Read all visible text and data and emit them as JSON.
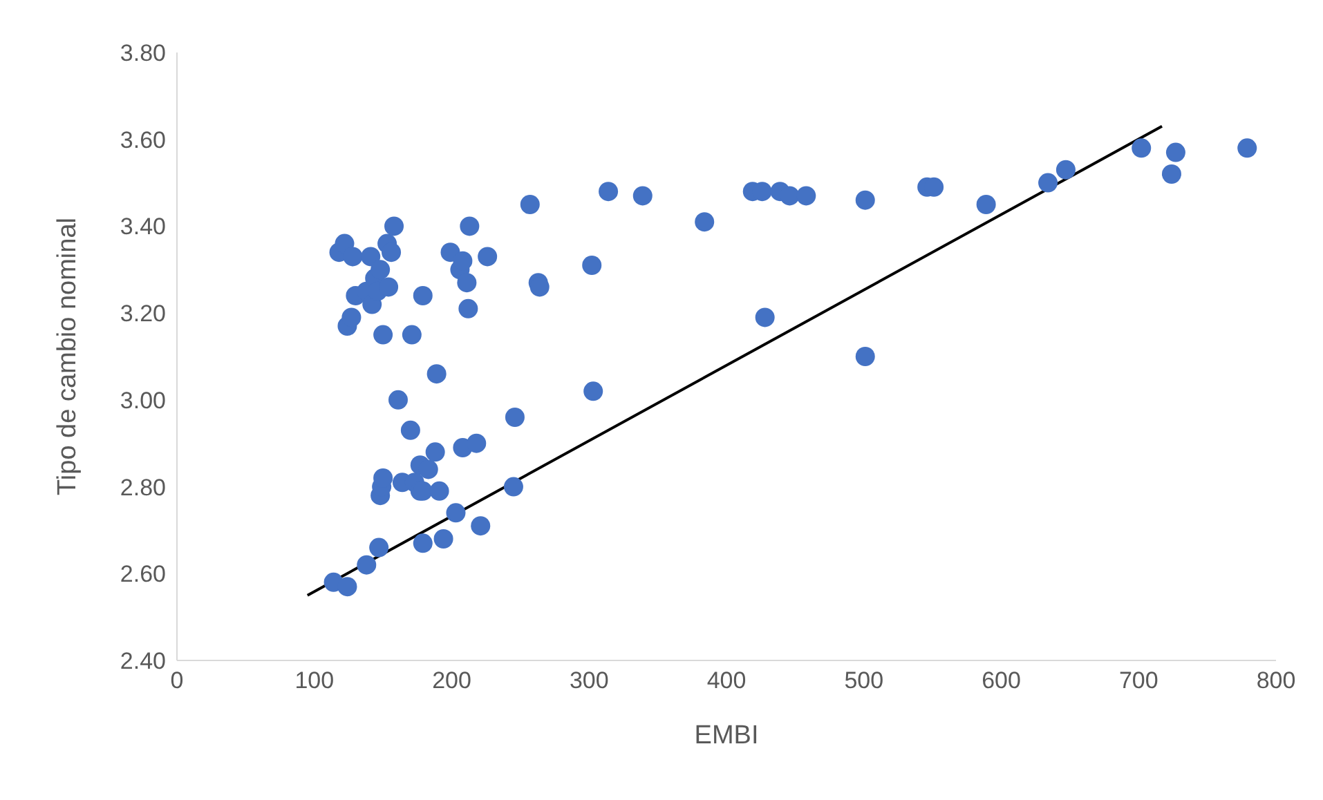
{
  "chart_data": {
    "type": "scatter",
    "xlabel": "EMBI",
    "ylabel": "Tipo de cambio nominal",
    "marker": "circle",
    "grid": false,
    "xlim": [
      0,
      800
    ],
    "xticks": [
      0,
      100,
      200,
      300,
      400,
      500,
      600,
      700,
      800
    ],
    "ylim": [
      2.4,
      3.8
    ],
    "yticks": [
      {
        "value": 2.4,
        "label": "2.40"
      },
      {
        "value": 2.6,
        "label": "2.60"
      },
      {
        "value": 2.8,
        "label": "2.80"
      },
      {
        "value": 3.0,
        "label": "3.00"
      },
      {
        "value": 3.2,
        "label": "3.20"
      },
      {
        "value": 3.4,
        "label": "3.40"
      },
      {
        "value": 3.6,
        "label": "3.60"
      },
      {
        "value": 3.8,
        "label": "3.80"
      }
    ],
    "series": [
      {
        "color": "#4472c4",
        "x": [
          114,
          124,
          138,
          147,
          148,
          149,
          150,
          118,
          122,
          128,
          124,
          127,
          130,
          138,
          141,
          142,
          144,
          146,
          148,
          150,
          153,
          154,
          156,
          158,
          161,
          164,
          170,
          171,
          173,
          177,
          177,
          179,
          179,
          179,
          183,
          188,
          189,
          191,
          194,
          199,
          203,
          206,
          208,
          208,
          211,
          212,
          213,
          218,
          221,
          226,
          245,
          246,
          257,
          263,
          264,
          302,
          303,
          314,
          339,
          384,
          419,
          426,
          428,
          439,
          446,
          458,
          501,
          501,
          546,
          551,
          589,
          634,
          647,
          702,
          724,
          727,
          779
        ],
        "values": [
          2.58,
          2.57,
          2.62,
          2.66,
          2.78,
          2.8,
          2.82,
          3.34,
          3.36,
          3.33,
          3.17,
          3.19,
          3.24,
          3.25,
          3.33,
          3.22,
          3.28,
          3.25,
          3.3,
          3.15,
          3.36,
          3.26,
          3.34,
          3.4,
          3.0,
          2.81,
          2.93,
          3.15,
          2.81,
          2.79,
          2.85,
          2.79,
          2.67,
          3.24,
          2.84,
          2.88,
          3.06,
          2.79,
          2.68,
          3.34,
          2.74,
          3.3,
          2.89,
          3.32,
          3.27,
          3.21,
          3.4,
          2.9,
          2.71,
          3.33,
          2.8,
          2.96,
          3.45,
          3.27,
          3.26,
          3.31,
          3.02,
          3.48,
          3.47,
          3.41,
          3.48,
          3.48,
          3.19,
          3.48,
          3.47,
          3.47,
          3.46,
          3.1,
          3.49,
          3.49,
          3.45,
          3.5,
          3.53,
          3.58,
          3.52,
          3.57,
          3.58
        ]
      },
      {
        "type": "line",
        "color": "#000000",
        "marker": "none",
        "x": [
          95,
          717
        ],
        "values": [
          2.55,
          3.63
        ]
      }
    ]
  }
}
